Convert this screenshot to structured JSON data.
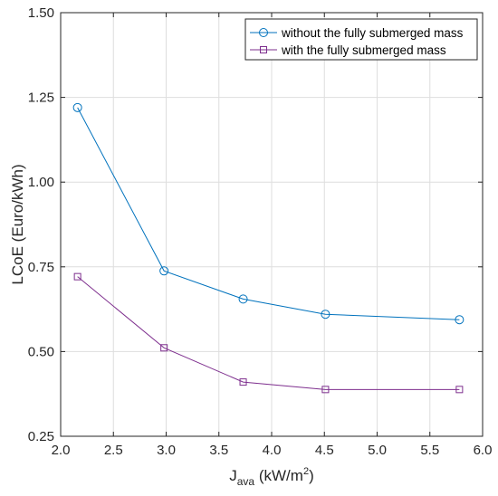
{
  "chart_data": {
    "type": "line",
    "title": "",
    "xlabel": "J",
    "xlabel_subscript": "ava",
    "xlabel_unit_prefix": " (kW/m",
    "xlabel_unit_superscript": "2",
    "xlabel_unit_suffix": ")",
    "ylabel": "LCoE (Euro/kWh)",
    "xlim": [
      2.0,
      6.0
    ],
    "ylim": [
      0.25,
      1.5
    ],
    "xticks": [
      2.0,
      2.5,
      3.0,
      3.5,
      4.0,
      4.5,
      5.0,
      5.5,
      6.0
    ],
    "xtick_labels": [
      "2.0",
      "2.5",
      "3.0",
      "3.5",
      "4.0",
      "4.5",
      "5.0",
      "5.5",
      "6.0"
    ],
    "yticks": [
      0.25,
      0.5,
      0.75,
      1.0,
      1.25,
      1.5
    ],
    "ytick_labels": [
      "0.25",
      "0.50",
      "0.75",
      "1.00",
      "1.25",
      "1.50"
    ],
    "grid": true,
    "legend_position": "top-right",
    "series": [
      {
        "name": "without the fully submerged mass",
        "color": "#0072BD",
        "marker": "circle",
        "x": [
          2.16,
          2.98,
          3.73,
          4.51,
          5.78
        ],
        "y": [
          1.22,
          0.738,
          0.655,
          0.61,
          0.594
        ]
      },
      {
        "name": "with the fully submerged mass",
        "color": "#7E2F8E",
        "marker": "square",
        "x": [
          2.16,
          2.98,
          3.73,
          4.51,
          5.78
        ],
        "y": [
          0.721,
          0.511,
          0.41,
          0.388,
          0.388
        ]
      }
    ]
  }
}
